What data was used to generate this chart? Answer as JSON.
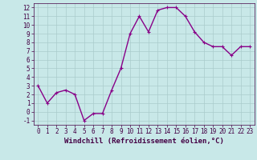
{
  "x": [
    0,
    1,
    2,
    3,
    4,
    5,
    6,
    7,
    8,
    9,
    10,
    11,
    12,
    13,
    14,
    15,
    16,
    17,
    18,
    19,
    20,
    21,
    22,
    23
  ],
  "y": [
    3,
    1,
    2.2,
    2.5,
    2,
    -1,
    -0.2,
    -0.2,
    2.5,
    5,
    9,
    11,
    9.2,
    11.7,
    12,
    12,
    11,
    9.2,
    8,
    7.5,
    7.5,
    6.5,
    7.5,
    7.5
  ],
  "line_color": "#880088",
  "marker": "+",
  "marker_size": 3,
  "background_color": "#c8e8e8",
  "grid_color": "#aacccc",
  "xlabel": "Windchill (Refroidissement éolien,°C)",
  "xlabel_fontsize": 6.5,
  "xlim": [
    -0.5,
    23.5
  ],
  "ylim": [
    -1.5,
    12.5
  ],
  "yticks": [
    -1,
    0,
    1,
    2,
    3,
    4,
    5,
    6,
    7,
    8,
    9,
    10,
    11,
    12
  ],
  "xticks": [
    0,
    1,
    2,
    3,
    4,
    5,
    6,
    7,
    8,
    9,
    10,
    11,
    12,
    13,
    14,
    15,
    16,
    17,
    18,
    19,
    20,
    21,
    22,
    23
  ],
  "tick_fontsize": 5.5,
  "line_width": 1.0,
  "text_color": "#440044"
}
